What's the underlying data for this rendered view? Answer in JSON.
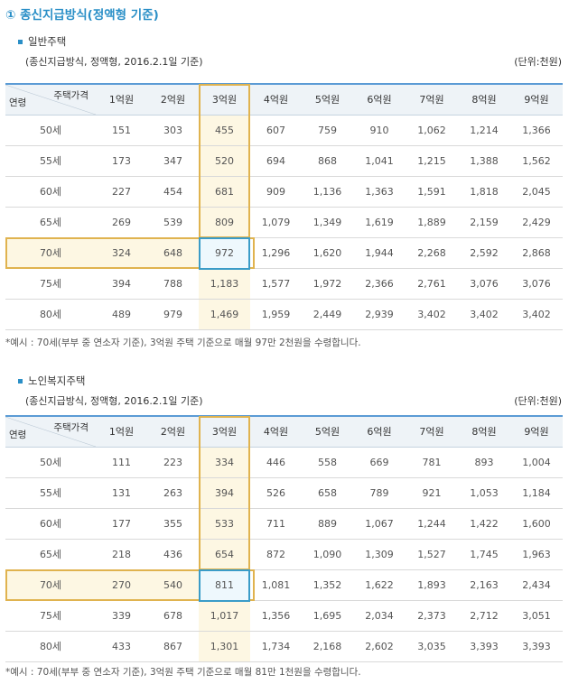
{
  "title": "① 종신지급방식(정액형 기준)",
  "sections": [
    {
      "heading": "일반주택",
      "note": "(종신지급방식, 정액형, 2016.2.1일 기준)",
      "unit": "(단위:천원)",
      "corner_top": "주택가격",
      "corner_bottom": "연령",
      "columns": [
        "1억원",
        "2억원",
        "3억원",
        "4억원",
        "5억원",
        "6억원",
        "7억원",
        "8억원",
        "9억원"
      ],
      "rows": [
        {
          "age": "50세",
          "values": [
            "151",
            "303",
            "455",
            "607",
            "759",
            "910",
            "1,062",
            "1,214",
            "1,366"
          ]
        },
        {
          "age": "55세",
          "values": [
            "173",
            "347",
            "520",
            "694",
            "868",
            "1,041",
            "1,215",
            "1,388",
            "1,562"
          ]
        },
        {
          "age": "60세",
          "values": [
            "227",
            "454",
            "681",
            "909",
            "1,136",
            "1,363",
            "1,591",
            "1,818",
            "2,045"
          ]
        },
        {
          "age": "65세",
          "values": [
            "269",
            "539",
            "809",
            "1,079",
            "1,349",
            "1,619",
            "1,889",
            "2,159",
            "2,429"
          ]
        },
        {
          "age": "70세",
          "values": [
            "324",
            "648",
            "972",
            "1,296",
            "1,620",
            "1,944",
            "2,268",
            "2,592",
            "2,868"
          ]
        },
        {
          "age": "75세",
          "values": [
            "394",
            "788",
            "1,183",
            "1,577",
            "1,972",
            "2,366",
            "2,761",
            "3,076",
            "3,076"
          ]
        },
        {
          "age": "80세",
          "values": [
            "489",
            "979",
            "1,469",
            "1,959",
            "2,449",
            "2,939",
            "3,402",
            "3,402",
            "3,402"
          ]
        }
      ],
      "footnote": "*예시 : 70세(부부 중 연소자 기준), 3억원 주택 기준으로 매월 97만 2천원을 수령합니다."
    },
    {
      "heading": "노인복지주택",
      "note": "(종신지급방식, 정액형, 2016.2.1일 기준)",
      "unit": "(단위:천원)",
      "corner_top": "주택가격",
      "corner_bottom": "연령",
      "columns": [
        "1억원",
        "2억원",
        "3억원",
        "4억원",
        "5억원",
        "6억원",
        "7억원",
        "8억원",
        "9억원"
      ],
      "rows": [
        {
          "age": "50세",
          "values": [
            "111",
            "223",
            "334",
            "446",
            "558",
            "669",
            "781",
            "893",
            "1,004"
          ]
        },
        {
          "age": "55세",
          "values": [
            "131",
            "263",
            "394",
            "526",
            "658",
            "789",
            "921",
            "1,053",
            "1,184"
          ]
        },
        {
          "age": "60세",
          "values": [
            "177",
            "355",
            "533",
            "711",
            "889",
            "1,067",
            "1,244",
            "1,422",
            "1,600"
          ]
        },
        {
          "age": "65세",
          "values": [
            "218",
            "436",
            "654",
            "872",
            "1,090",
            "1,309",
            "1,527",
            "1,745",
            "1,963"
          ]
        },
        {
          "age": "70세",
          "values": [
            "270",
            "540",
            "811",
            "1,081",
            "1,352",
            "1,622",
            "1,893",
            "2,163",
            "2,434"
          ]
        },
        {
          "age": "75세",
          "values": [
            "339",
            "678",
            "1,017",
            "1,356",
            "1,695",
            "2,034",
            "2,373",
            "2,712",
            "3,051"
          ]
        },
        {
          "age": "80세",
          "values": [
            "433",
            "867",
            "1,301",
            "1,734",
            "2,168",
            "2,602",
            "3,035",
            "3,393",
            "3,393"
          ]
        }
      ],
      "footnote": "*예시 : 70세(부부 중 연소자 기준), 3억원 주택 기준으로 매월 81만 1천원을 수령합니다."
    }
  ],
  "colors": {
    "accent": "#2a8fc7",
    "highlight_border": "#e0b34f",
    "highlight_fill": "#fdf7e3",
    "cell_border": "#3a9cc8"
  }
}
